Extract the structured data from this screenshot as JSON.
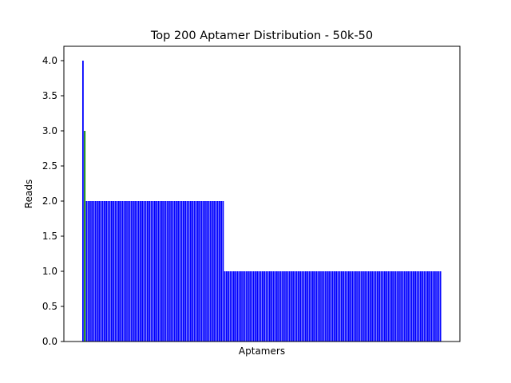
{
  "chart_data": {
    "type": "bar",
    "title": "Top 200 Aptamer Distribution - 50k-50",
    "xlabel": "Aptamers",
    "ylabel": "Reads",
    "ylim": [
      0,
      4.0
    ],
    "yticks": [
      "0.0",
      "0.5",
      "1.0",
      "1.5",
      "2.0",
      "2.5",
      "3.0",
      "3.5",
      "4.0"
    ],
    "xticks": [],
    "grid": false,
    "legend": "none",
    "bar_counts": [
      {
        "value": 4,
        "count": 1,
        "color": "#0000ff"
      },
      {
        "value": 3,
        "count": 1,
        "color": "#008000"
      },
      {
        "value": 2,
        "count": 77,
        "color": "#0000ff"
      },
      {
        "value": 1,
        "count": 121,
        "color": "#0000ff"
      }
    ]
  }
}
